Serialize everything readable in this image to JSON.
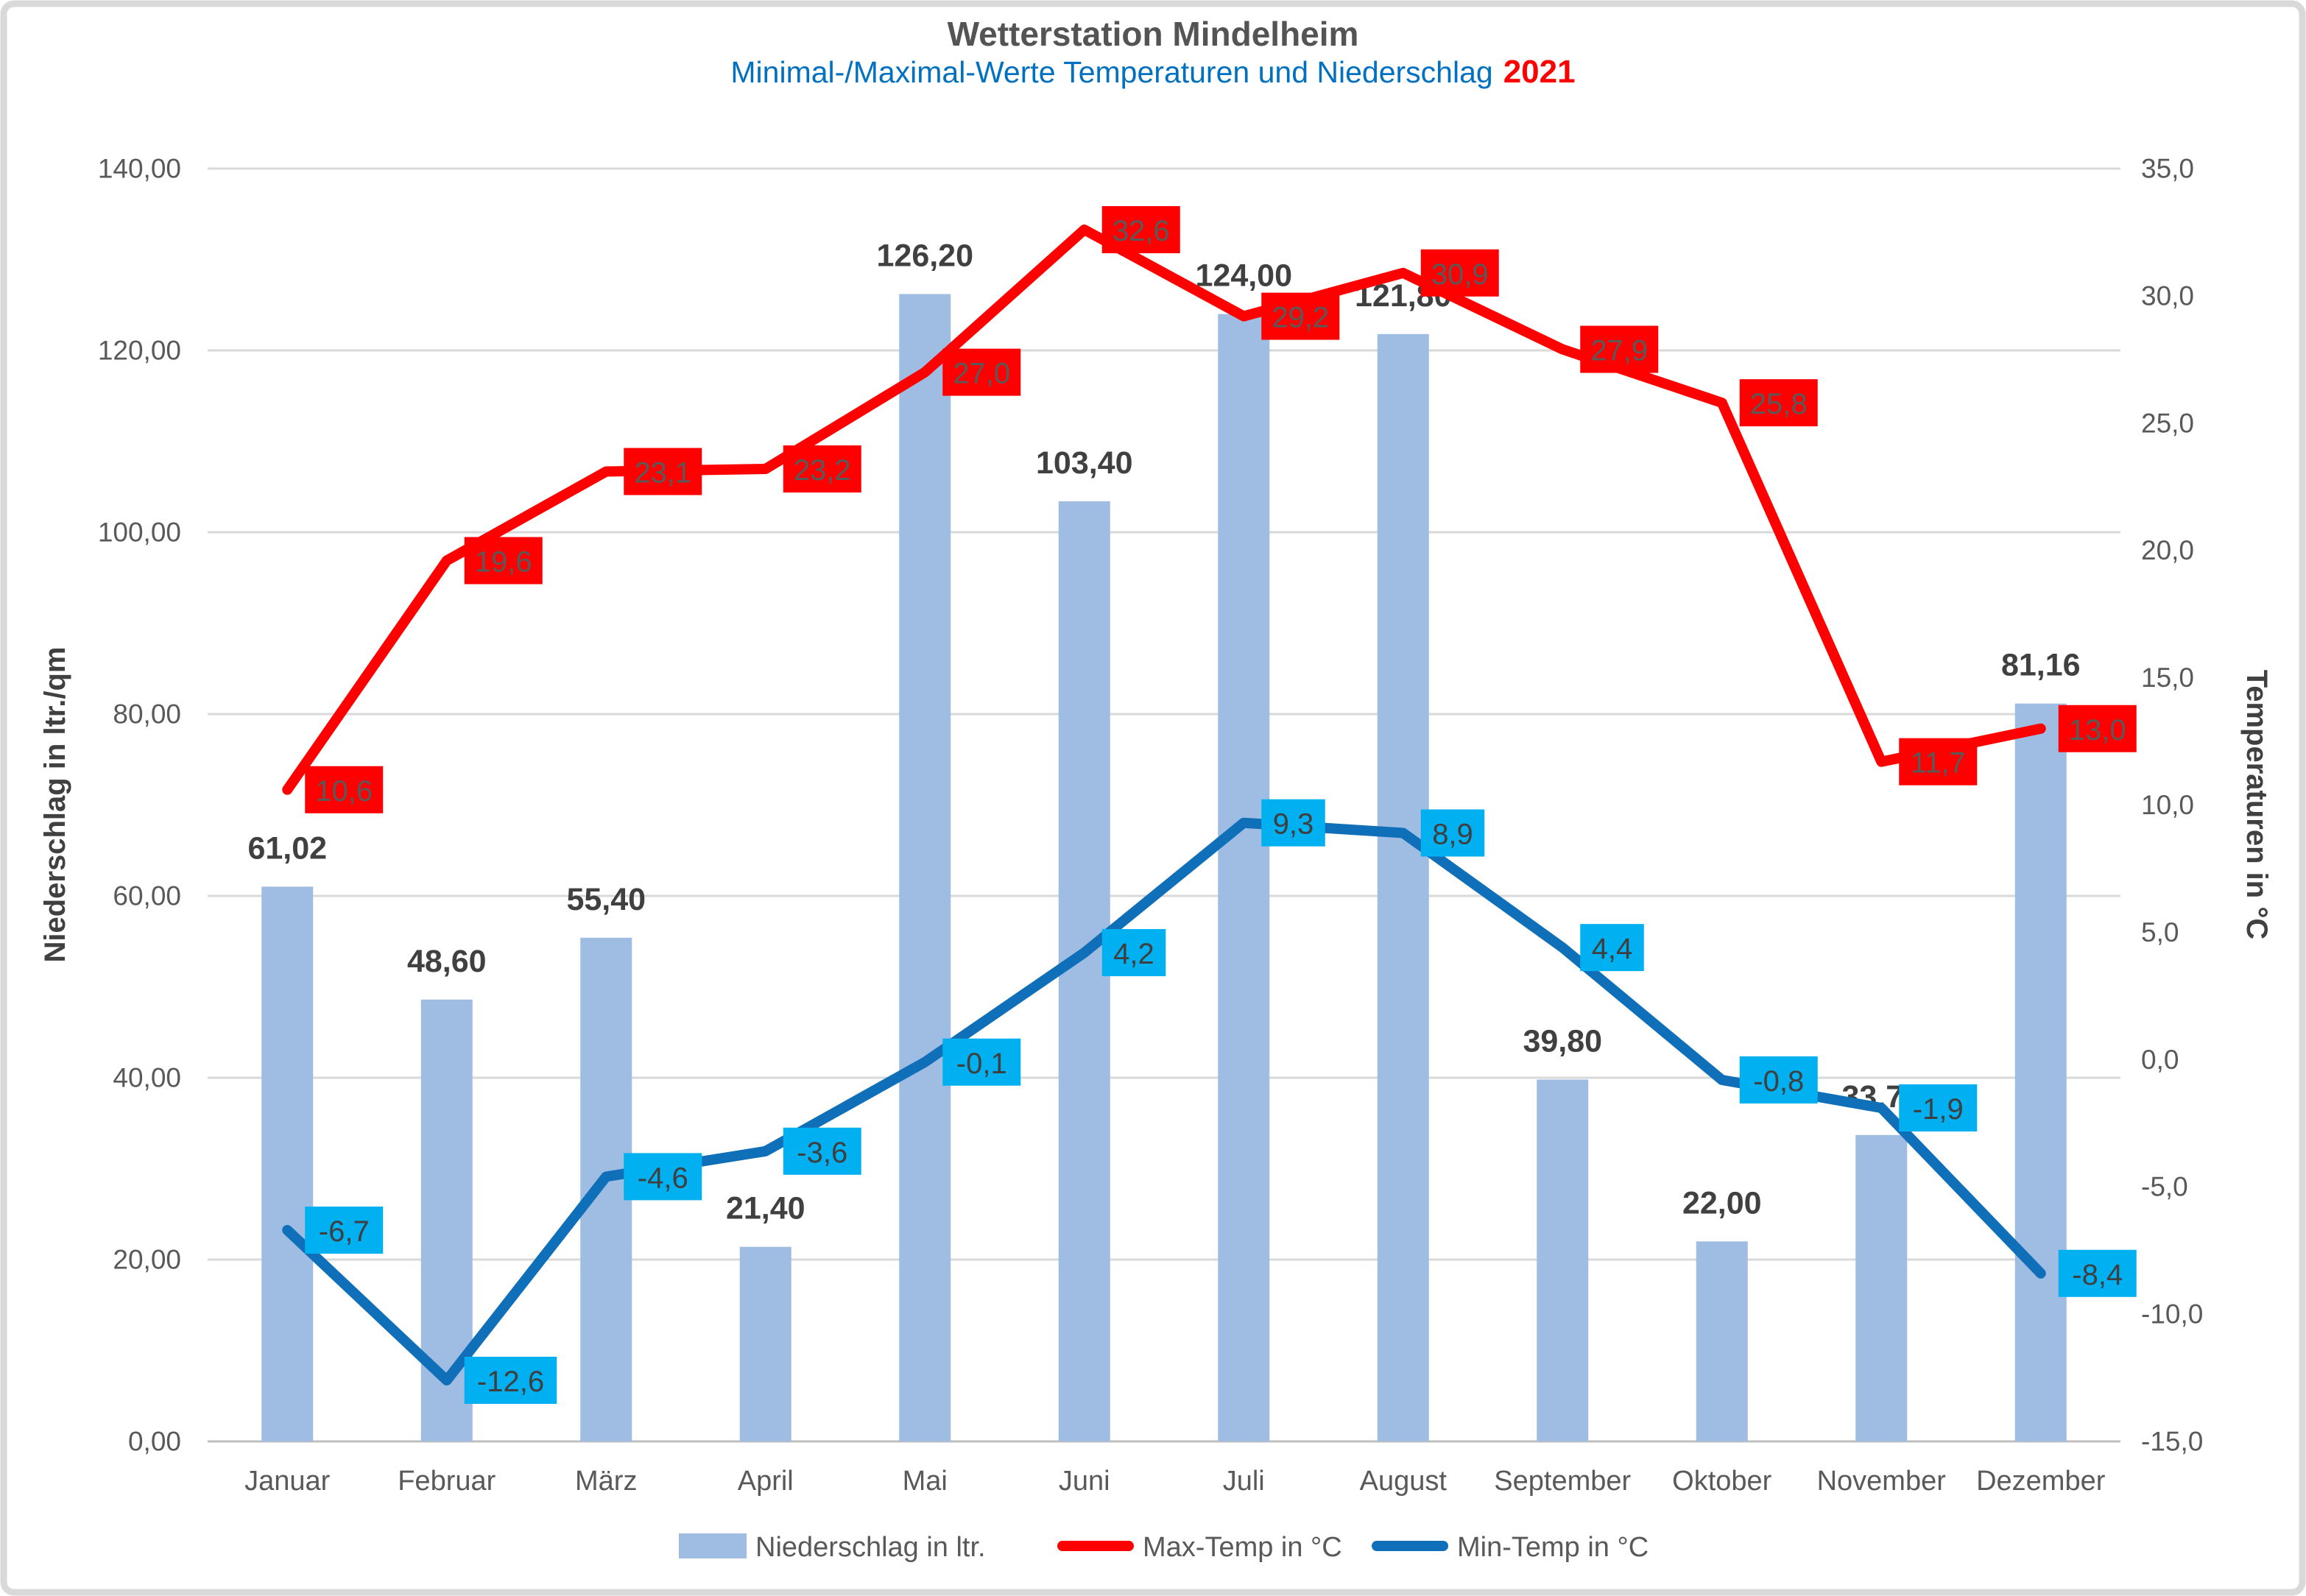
{
  "chart": {
    "title": "Wetterstation Mindelheim",
    "subtitle": "Minimal-/Maximal-Werte Temperaturen und Niederschlag",
    "subtitle_year": "2021",
    "left_axis_title": "Niederschlag in ltr./qm",
    "right_axis_title": "Temperaturen in °C",
    "legend": {
      "bar_label": "Niederschlag in ltr.",
      "max_label": "Max-Temp in °C",
      "min_label": "Min-Temp in °C"
    },
    "style": {
      "bar_fill": "#9FBCE3",
      "max_line_color": "#FF0000",
      "max_box_fill": "#FF0000",
      "max_box_text": "#595959",
      "min_line_color": "#0F6FB8",
      "min_box_fill": "#00B0F0",
      "min_box_text": "#3F3F3F",
      "grid_color": "#D9D9D9",
      "axis_line_color": "#BFBFBF",
      "tick_text_color": "#595959",
      "bar_label_color": "#404040",
      "title_color": "#545454",
      "subtitle_color": "#0070C0",
      "year_color": "#FF0000",
      "border_color": "#D9D9D9"
    }
  },
  "chart_data": {
    "type": "bar+line combo",
    "title": "Wetterstation Mindelheim",
    "subtitle": "Minimal-/Maximal-Werte Temperaturen und Niederschlag 2021",
    "categories": [
      "Januar",
      "Februar",
      "März",
      "April",
      "Mai",
      "Juni",
      "Juli",
      "August",
      "September",
      "Oktober",
      "November",
      "Dezember"
    ],
    "series": [
      {
        "name": "Niederschlag in ltr.",
        "type": "bar",
        "axis": "left",
        "values": [
          61.02,
          48.6,
          55.4,
          21.4,
          126.2,
          103.4,
          124.0,
          121.8,
          39.8,
          22.0,
          33.7,
          81.16
        ],
        "labels": [
          "61,02",
          "48,60",
          "55,40",
          "21,40",
          "126,20",
          "103,40",
          "124,00",
          "121,80",
          "39,80",
          "22,00",
          "33,70",
          "81,16"
        ]
      },
      {
        "name": "Max-Temp in °C",
        "type": "line",
        "axis": "right",
        "values": [
          10.6,
          19.6,
          23.1,
          23.2,
          27.0,
          32.6,
          29.2,
          30.9,
          27.9,
          25.8,
          11.7,
          13.0
        ],
        "labels": [
          "10,6",
          "19,6",
          "23,1",
          "23,2",
          "27,0",
          "32,6",
          "29,2",
          "30,9",
          "27,9",
          "25,8",
          "11,7",
          "13,0"
        ]
      },
      {
        "name": "Min-Temp in °C",
        "type": "line",
        "axis": "right",
        "values": [
          -6.7,
          -12.6,
          -4.6,
          -3.6,
          -0.1,
          4.2,
          9.3,
          8.9,
          4.4,
          -0.8,
          -1.9,
          -8.4
        ],
        "labels": [
          "-6,7",
          "-12,6",
          "-4,6",
          "-3,6",
          "-0,1",
          "4,2",
          "9,3",
          "8,9",
          "4,4",
          "-0,8",
          "-1,9",
          "-8,4"
        ]
      }
    ],
    "left_axis": {
      "min": 0,
      "max": 140,
      "step": 20,
      "values": [
        0,
        20,
        40,
        60,
        80,
        100,
        120,
        140
      ],
      "tick_labels": [
        "0,00",
        "20,00",
        "40,00",
        "60,00",
        "80,00",
        "100,00",
        "120,00",
        "140,00"
      ]
    },
    "right_axis": {
      "min": -15,
      "max": 35,
      "step": 5,
      "values": [
        -15,
        -10,
        -5,
        0,
        5,
        10,
        15,
        20,
        25,
        30,
        35
      ],
      "tick_labels": [
        "-15,0",
        "-10,0",
        "-5,0",
        "0,0",
        "5,0",
        "10,0",
        "15,0",
        "20,0",
        "25,0",
        "30,0",
        "35,0"
      ]
    },
    "grid": true,
    "legend_position": "bottom"
  }
}
